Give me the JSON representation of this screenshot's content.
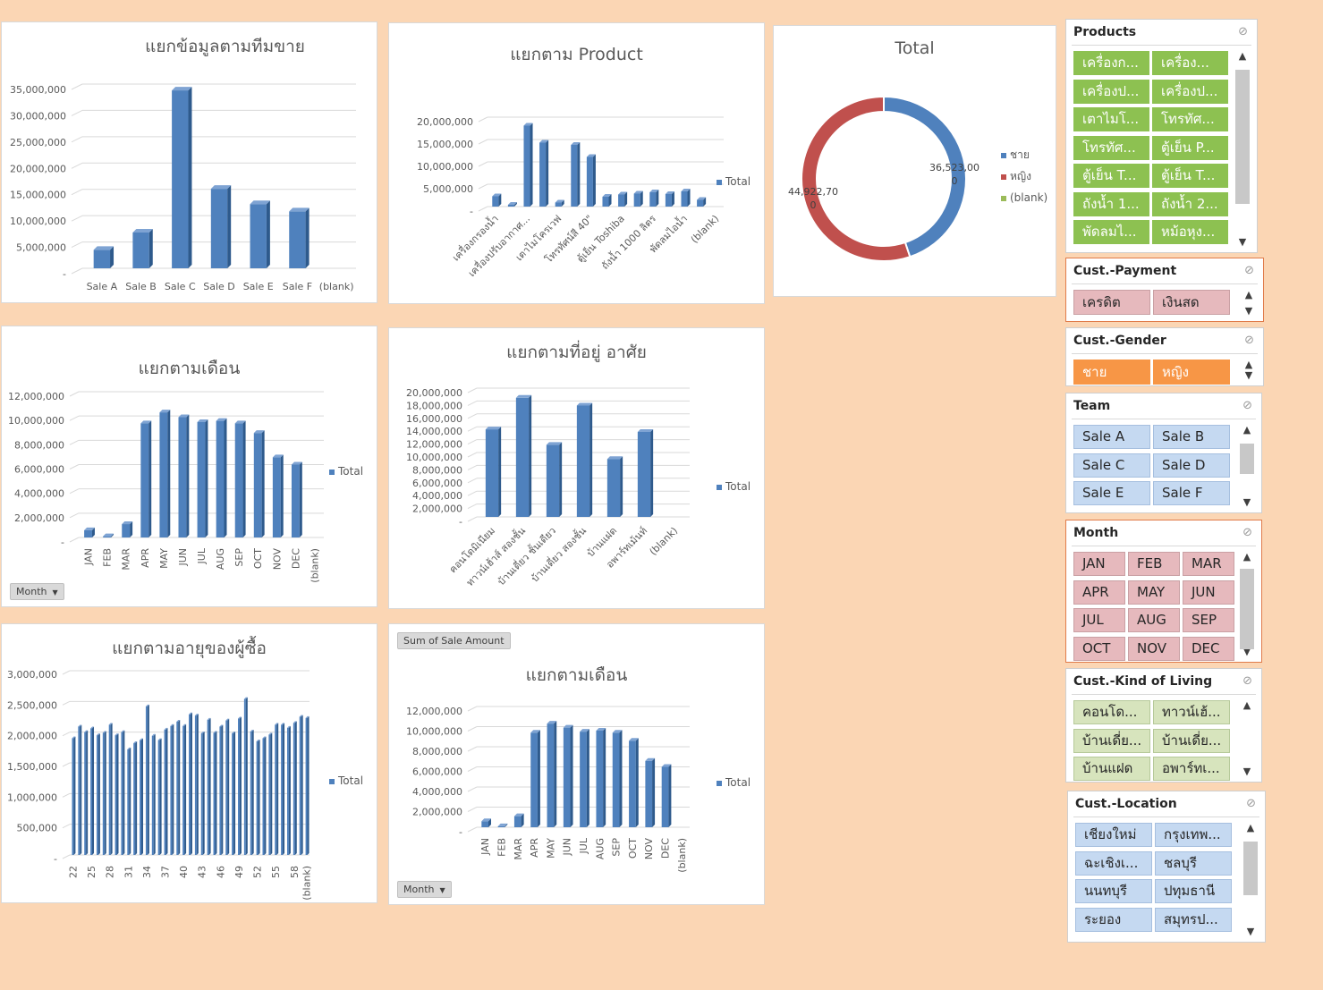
{
  "legend_total": "Total",
  "field_buttons": {
    "month": "Month",
    "sum_sale_amount": "Sum of Sale Amount"
  },
  "chart_data": [
    {
      "id": "team",
      "type": "bar",
      "title": "แยกข้อมูลตามทีมขาย",
      "categories": [
        "Sale A",
        "Sale B",
        "Sale C",
        "Sale D",
        "Sale E",
        "Sale F",
        "(blank)"
      ],
      "values": [
        3500000,
        6800000,
        33800000,
        15100000,
        12200000,
        10800000,
        0
      ],
      "ylim": [
        0,
        35000000
      ],
      "yticks": [
        "-",
        "5,000,000",
        "10,000,000",
        "15,000,000",
        "20,000,000",
        "25,000,000",
        "30,000,000",
        "35,000,000"
      ],
      "legend": false
    },
    {
      "id": "product",
      "type": "bar",
      "title": "แยกตาม Product",
      "categories": [
        "เครื่องกรองน้ำ",
        "",
        "เครื่องปรับอากาศ...",
        "",
        "เตาไมโครเวฟ",
        "",
        "โทรทัศน์สี 40\"",
        "",
        "ตู้เย็น Toshiba",
        "",
        "ถังน้ำ 1000 ลิตร",
        "",
        "พัดลมไอน้ำ",
        "",
        "(blank)"
      ],
      "values": [
        2300000,
        400000,
        18100000,
        14300000,
        900000,
        13800000,
        11100000,
        2200000,
        2700000,
        2900000,
        3200000,
        2800000,
        3400000,
        1500000,
        0
      ],
      "ylim": [
        0,
        20000000
      ],
      "yticks": [
        "-",
        "5,000,000",
        "10,000,000",
        "15,000,000",
        "20,000,000"
      ],
      "legend": true
    },
    {
      "id": "gender",
      "type": "pie",
      "title": "Total",
      "categories": [
        "ชาย",
        "หญิง",
        "(blank)"
      ],
      "values": [
        36523000,
        44922700,
        0
      ],
      "labels": [
        "36,523,00\n0",
        "44,922,70\n0",
        ""
      ],
      "colors": [
        "#4f81bd",
        "#c0504d",
        "#9bbb59"
      ]
    },
    {
      "id": "month1",
      "type": "bar",
      "title": "แยกตามเดือน",
      "categories": [
        "JAN",
        "FEB",
        "MAR",
        "APR",
        "MAY",
        "JUN",
        "JUL",
        "AUG",
        "SEP",
        "OCT",
        "NOV",
        "DEC",
        "(blank)"
      ],
      "values": [
        600000,
        100000,
        1100000,
        9400000,
        10300000,
        9900000,
        9500000,
        9600000,
        9400000,
        8600000,
        6600000,
        6000000,
        0
      ],
      "ylim": [
        0,
        12000000
      ],
      "yticks": [
        "-",
        "2,000,000",
        "4,000,000",
        "6,000,000",
        "8,000,000",
        "10,000,000",
        "12,000,000"
      ],
      "legend": true
    },
    {
      "id": "living",
      "type": "bar",
      "title": "แยกตามที่อยู่ อาศัย",
      "categories": [
        "คอนโดมิเนียม",
        "ทาวน์เฮ้าส์ สองชั้น",
        "บ้านเดี่ยว ชั้นเดียว",
        "บ้านเดี่ยว สองชั้น",
        "บ้านแฝด",
        "อพาร์ทเม้นท์",
        "(blank)"
      ],
      "values": [
        13600000,
        18500000,
        11200000,
        17300000,
        9000000,
        13200000,
        0
      ],
      "ylim": [
        0,
        20000000
      ],
      "yticks": [
        "-",
        "2,000,000",
        "4,000,000",
        "6,000,000",
        "8,000,000",
        "10,000,000",
        "12,000,000",
        "14,000,000",
        "16,000,000",
        "18,000,000",
        "20,000,000"
      ],
      "legend": true
    },
    {
      "id": "age",
      "type": "bar",
      "title": "แยกตามอายุของผู้ซื้อ",
      "categories": [
        "22",
        "",
        "",
        "25",
        "",
        "",
        "28",
        "",
        "",
        "31",
        "",
        "",
        "34",
        "",
        "",
        "37",
        "",
        "",
        "40",
        "",
        "",
        "43",
        "",
        "",
        "46",
        "",
        "",
        "49",
        "",
        "",
        "52",
        "",
        "",
        "55",
        "",
        "",
        "58",
        "",
        "(blank)"
      ],
      "values": [
        1900000,
        2090000,
        2000000,
        2060000,
        1950000,
        1990000,
        2120000,
        1950000,
        2000000,
        1720000,
        1820000,
        1870000,
        2420000,
        1940000,
        1870000,
        2040000,
        2100000,
        2170000,
        2100000,
        2290000,
        2270000,
        1980000,
        2200000,
        1990000,
        2090000,
        2190000,
        1980000,
        2220000,
        2540000,
        2010000,
        1850000,
        1900000,
        1960000,
        2120000,
        2120000,
        2070000,
        2150000,
        2250000,
        2230000
      ],
      "ylim": [
        0,
        3000000
      ],
      "yticks": [
        "-",
        "500,000",
        "1,000,000",
        "1,500,000",
        "2,000,000",
        "2,500,000",
        "3,000,000"
      ],
      "legend": true
    },
    {
      "id": "month2",
      "type": "bar",
      "title": "แยกตามเดือน",
      "categories": [
        "JAN",
        "FEB",
        "MAR",
        "APR",
        "MAY",
        "JUN",
        "JUL",
        "AUG",
        "SEP",
        "OCT",
        "NOV",
        "DEC",
        "(blank)"
      ],
      "values": [
        600000,
        100000,
        1100000,
        9400000,
        10300000,
        9900000,
        9500000,
        9600000,
        9400000,
        8600000,
        6600000,
        6000000,
        0
      ],
      "ylim": [
        0,
        12000000
      ],
      "yticks": [
        "-",
        "2,000,000",
        "4,000,000",
        "6,000,000",
        "8,000,000",
        "10,000,000",
        "12,000,000"
      ],
      "legend": true
    }
  ],
  "slicers": [
    {
      "id": "products",
      "title": "Products",
      "items": [
        "เครื่องก...",
        "เครื่อง...",
        "เครื่องป...",
        "เครื่องป...",
        "เตาไมโ...",
        "โทรทัศ...",
        "โทรทัศ...",
        "ตู้เย็น P...",
        "ตู้เย็น T...",
        "ตู้เย็น T...",
        "ถังน้ำ 1...",
        "ถังน้ำ 2...",
        "พัดลมไ...",
        "หม้อหุง..."
      ]
    },
    {
      "id": "payment",
      "title": "Cust.-Payment",
      "items": [
        "เครดิต",
        "เงินสด"
      ]
    },
    {
      "id": "gender",
      "title": "Cust.-Gender",
      "items": [
        "ชาย",
        "หญิง"
      ]
    },
    {
      "id": "team",
      "title": "Team",
      "items": [
        "Sale A",
        "Sale B",
        "Sale C",
        "Sale D",
        "Sale E",
        "Sale F"
      ]
    },
    {
      "id": "month",
      "title": "Month",
      "items": [
        "JAN",
        "FEB",
        "MAR",
        "APR",
        "MAY",
        "JUN",
        "JUL",
        "AUG",
        "SEP",
        "OCT",
        "NOV",
        "DEC"
      ]
    },
    {
      "id": "living",
      "title": "Cust.-Kind of Living",
      "items": [
        "คอนโด...",
        "ทาวน์เฮ้...",
        "บ้านเดี่ย...",
        "บ้านเดี่ย...",
        "บ้านแฝด",
        "อพาร์ทเ..."
      ]
    },
    {
      "id": "location",
      "title": "Cust.-Location",
      "items": [
        "เชียงใหม่",
        "กรุงเทพ...",
        "ฉะเชิงเ...",
        "ชลบุรี",
        "นนทบุรี",
        "ปทุมธานี",
        "ระยอง",
        "สมุทรป..."
      ]
    }
  ],
  "colors": {
    "bar": "#4f81bd",
    "bar_dark": "#2e5a8c",
    "bar_top": "#7ea3d3"
  }
}
